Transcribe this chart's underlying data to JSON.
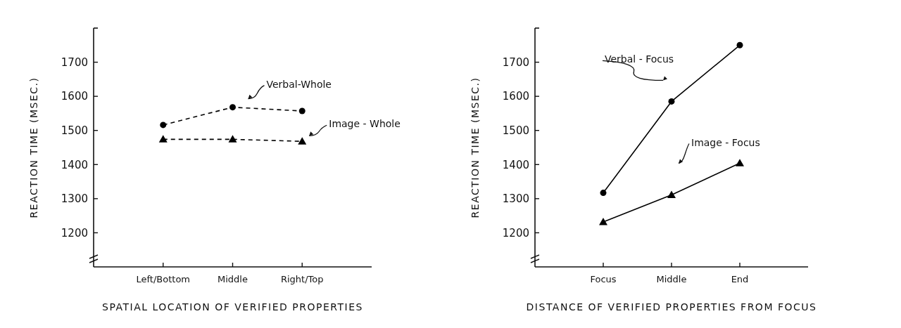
{
  "chart_data": [
    {
      "type": "line",
      "xlabel": "SPATIAL LOCATION OF VERIFIED PROPERTIES",
      "ylabel": "REACTION TIME (MSEC.)",
      "categories": [
        "Left/Bottom",
        "Middle",
        "Right/Top"
      ],
      "ylim": [
        1100,
        1800
      ],
      "yticks": [
        1200,
        1300,
        1400,
        1500,
        1600,
        1700
      ],
      "line_style": "dashed",
      "grid": false,
      "series": [
        {
          "name": "Verbal-Whole",
          "color": "#000000",
          "marker": "circle",
          "values": [
            1516,
            1568,
            1557
          ]
        },
        {
          "name": "Image - Whole",
          "color": "#000000",
          "marker": "triangle",
          "values": [
            1474,
            1474,
            1468
          ]
        }
      ]
    },
    {
      "type": "line",
      "xlabel": "DISTANCE OF VERIFIED PROPERTIES FROM FOCUS",
      "ylabel": "REACTION TIME (MSEC.)",
      "categories": [
        "Focus",
        "Middle",
        "End"
      ],
      "ylim": [
        1100,
        1800
      ],
      "yticks": [
        1200,
        1300,
        1400,
        1500,
        1600,
        1700
      ],
      "line_style": "solid",
      "grid": false,
      "series": [
        {
          "name": "Verbal - Focus",
          "color": "#000000",
          "marker": "circle",
          "values": [
            1317,
            1585,
            1750
          ]
        },
        {
          "name": "Image - Focus",
          "color": "#000000",
          "marker": "triangle",
          "values": [
            1232,
            1311,
            1404
          ]
        }
      ]
    }
  ]
}
